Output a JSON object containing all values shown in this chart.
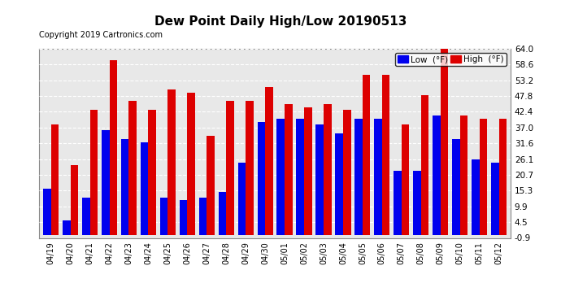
{
  "title": "Dew Point Daily High/Low 20190513",
  "copyright": "Copyright 2019 Cartronics.com",
  "categories": [
    "04/19",
    "04/20",
    "04/21",
    "04/22",
    "04/23",
    "04/24",
    "04/25",
    "04/26",
    "04/27",
    "04/28",
    "04/29",
    "04/30",
    "05/01",
    "05/02",
    "05/03",
    "05/04",
    "05/05",
    "05/06",
    "05/07",
    "05/08",
    "05/09",
    "05/10",
    "05/11",
    "05/12"
  ],
  "low_values": [
    16,
    5,
    13,
    36,
    33,
    32,
    13,
    12,
    13,
    15,
    25,
    39,
    40,
    40,
    38,
    35,
    40,
    40,
    22,
    22,
    41,
    33,
    26,
    25
  ],
  "high_values": [
    38,
    24,
    43,
    60,
    46,
    43,
    50,
    49,
    34,
    46,
    46,
    51,
    45,
    44,
    45,
    43,
    55,
    55,
    38,
    48,
    64,
    41,
    40,
    40
  ],
  "low_color": "#0000ee",
  "high_color": "#dd0000",
  "ylim_min": -0.9,
  "ylim_max": 64.0,
  "ytick_values": [
    -0.9,
    4.5,
    9.9,
    15.3,
    20.7,
    26.1,
    31.6,
    37.0,
    42.4,
    47.8,
    53.2,
    58.6,
    64.0
  ],
  "ytick_labels": [
    "-0.9",
    "4.5",
    "9.9",
    "15.3",
    "20.7",
    "26.1",
    "31.6",
    "37.0",
    "42.4",
    "47.8",
    "53.2",
    "58.6",
    "64.0"
  ],
  "background_color": "#ffffff",
  "plot_bg_color": "#e8e8e8",
  "grid_color": "#ffffff",
  "legend_low_label": "Low  (°F)",
  "legend_high_label": "High  (°F)",
  "bar_width": 0.4
}
